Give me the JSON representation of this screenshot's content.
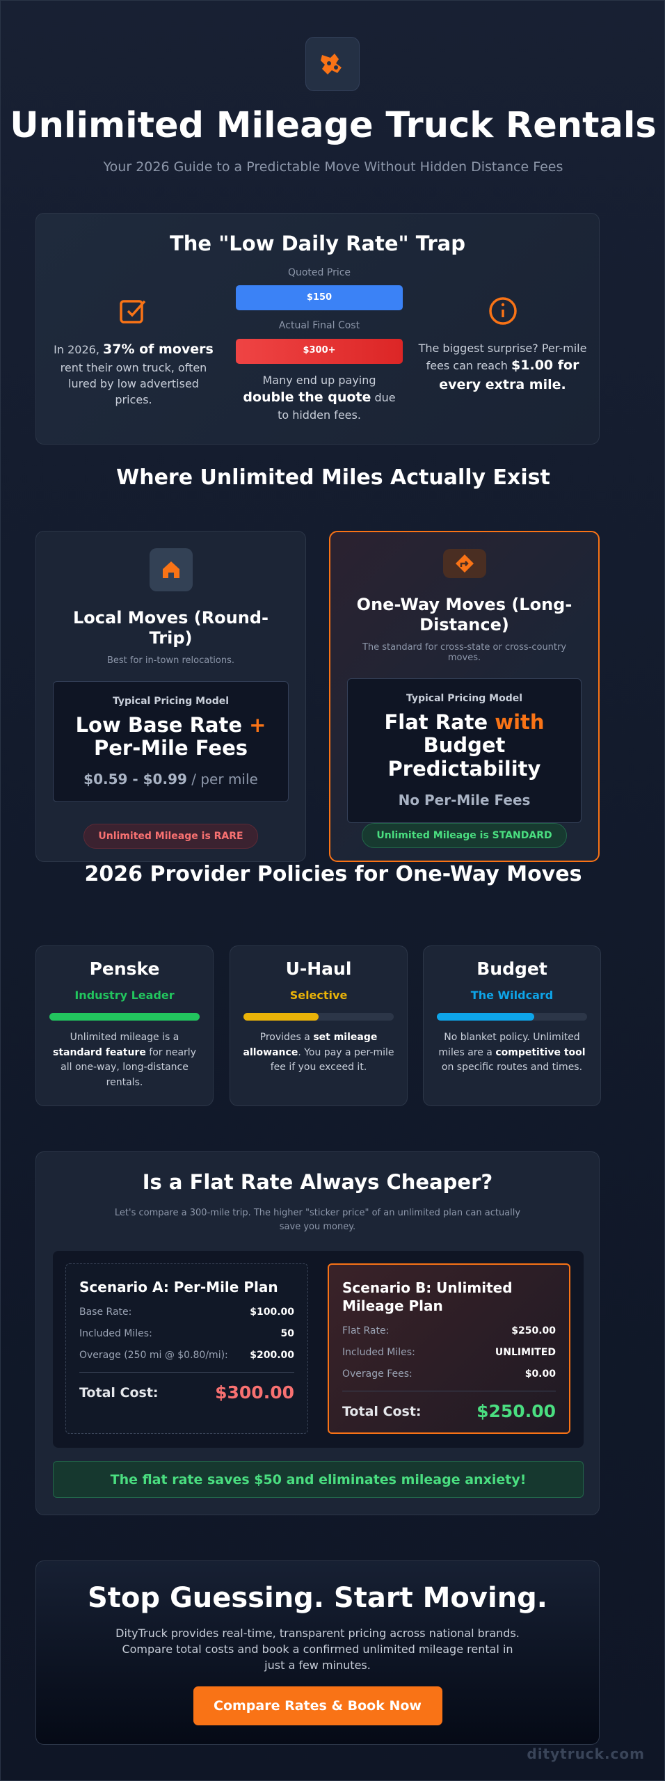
{
  "header": {
    "title": "Unlimited Mileage Truck Rentals",
    "subtitle": "Your 2026 Guide to a Predictable Move Without Hidden Distance Fees"
  },
  "trap": {
    "title": "The \"Low Daily Rate\" Trap",
    "left": {
      "pre": "In 2026, ",
      "bold": "37% of movers",
      "post": " rent their own truck, often lured by low advertised prices."
    },
    "quoted_label": "Quoted Price",
    "quoted_value": "$150",
    "actual_label": "Actual Final Cost",
    "actual_value": "$300+",
    "middle": {
      "pre": "Many end up paying ",
      "bold": "double the quote",
      "post": " due to hidden fees."
    },
    "right": {
      "pre": "The biggest surprise? Per-mile fees can reach ",
      "bold": "$1.00 for every extra mile."
    }
  },
  "where": {
    "title": "Where Unlimited Miles Actually Exist",
    "cards": [
      {
        "title": "Local Moves (Round-Trip)",
        "subtitle": "Best for in-town relocations.",
        "model_label": "Typical Pricing Model",
        "model_a": "Low Base Rate ",
        "model_accent": "+",
        "model_b": " Per-Mile Fees",
        "price": "$0.59 - $0.99",
        "price_unit": " / per mile",
        "badge": "Unlimited Mileage is RARE"
      },
      {
        "title": "One-Way Moves (Long-Distance)",
        "subtitle": "The standard for cross-state or cross-country moves.",
        "model_label": "Typical Pricing Model",
        "model_a": "Flat Rate ",
        "model_accent": "with",
        "model_b": " Budget Predictability",
        "price": "No Per-Mile Fees",
        "badge": "Unlimited Mileage is STANDARD"
      }
    ]
  },
  "providers": {
    "title": "2026 Provider Policies for One-Way Moves",
    "items": [
      {
        "name": "Penske",
        "tag": "Industry Leader",
        "pre": "Unlimited mileage is a ",
        "bold": "standard feature",
        "post": " for nearly all one-way, long-distance rentals."
      },
      {
        "name": "U-Haul",
        "tag": "Selective",
        "pre": "Provides a ",
        "bold": "set mileage allowance",
        "post": ". You pay a per-mile fee if you exceed it."
      },
      {
        "name": "Budget",
        "tag": "The Wildcard",
        "pre": "No blanket policy. Unlimited miles are a ",
        "bold": "competitive tool",
        "post": " on specific routes and times."
      }
    ]
  },
  "compare": {
    "title": "Is a Flat Rate Always Cheaper?",
    "intro": "Let's compare a 300-mile trip. The higher \"sticker price\" of an unlimited plan can actually save you money.",
    "scenarios": [
      {
        "title": "Scenario A: Per-Mile Plan",
        "rows": [
          [
            "Base Rate:",
            "$100.00"
          ],
          [
            "Included Miles:",
            "50"
          ],
          [
            "Overage (250 mi @ $0.80/mi):",
            "$200.00"
          ]
        ],
        "total_label": "Total Cost:",
        "total": "$300.00"
      },
      {
        "title": "Scenario B: Unlimited Mileage Plan",
        "rows": [
          [
            "Flat Rate:",
            "$250.00"
          ],
          [
            "Included Miles:",
            "UNLIMITED"
          ],
          [
            "Overage Fees:",
            "$0.00"
          ]
        ],
        "total_label": "Total Cost:",
        "total": "$250.00"
      }
    ],
    "savings": "The flat rate saves $50 and eliminates mileage anxiety!"
  },
  "cta": {
    "title": "Stop Guessing. Start Moving.",
    "text": "DityTruck provides real-time, transparent pricing across national brands. Compare total costs and book a confirmed unlimited mileage rental in just a few minutes.",
    "button": "Compare Rates & Book Now"
  },
  "footer": "ditytruck.com"
}
